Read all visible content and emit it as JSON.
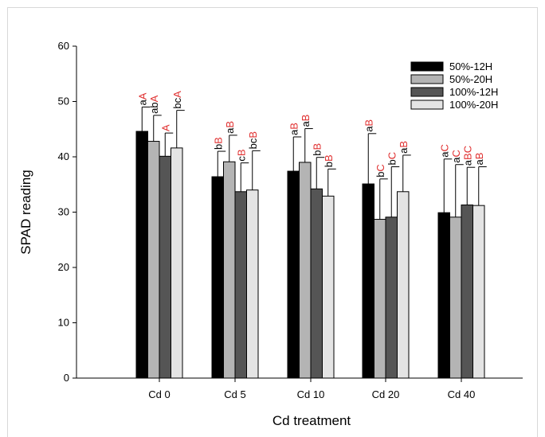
{
  "chart_data": {
    "type": "bar",
    "xlabel": "Cd treatment",
    "ylabel": "SPAD reading",
    "ylim": [
      0,
      60
    ],
    "yticks": [
      0,
      10,
      20,
      30,
      40,
      50,
      60
    ],
    "categories": [
      "Cd 0",
      "Cd 5",
      "Cd 10",
      "Cd 20",
      "Cd 40"
    ],
    "legend_position": "top-right",
    "series": [
      {
        "name": "50%-12H",
        "color": "#000000",
        "values": [
          44.6,
          36.4,
          37.4,
          35.1,
          29.9
        ],
        "errors": [
          4.4,
          4.6,
          6.2,
          9.1,
          9.7
        ],
        "letters_black": [
          "a",
          "b",
          "a",
          "a",
          "a"
        ],
        "letters_red": [
          "A",
          "B",
          "B",
          "B",
          "C"
        ]
      },
      {
        "name": "50%-20H",
        "color": "#b4b4b4",
        "values": [
          42.8,
          39.1,
          39.0,
          28.7,
          29.1
        ],
        "errors": [
          4.7,
          4.8,
          6.1,
          7.3,
          9.5
        ],
        "letters_black": [
          "ab",
          "a",
          "a",
          "b",
          "a"
        ],
        "letters_red": [
          "A",
          "B",
          "B",
          "C",
          "C"
        ]
      },
      {
        "name": "100%-12H",
        "color": "#555555",
        "values": [
          40.1,
          33.7,
          34.2,
          29.1,
          31.3
        ],
        "errors": [
          4.2,
          5.2,
          5.7,
          9.1,
          6.8
        ],
        "letters_black": [
          "",
          "c",
          "b",
          "b",
          "a"
        ],
        "letters_red": [
          "A",
          "B",
          "B",
          "C",
          "BC"
        ]
      },
      {
        "name": "100%-20H",
        "color": "#e4e4e4",
        "values": [
          41.6,
          34.0,
          32.9,
          33.7,
          31.2
        ],
        "errors": [
          6.8,
          7.1,
          4.9,
          6.6,
          7.0
        ],
        "letters_black": [
          "bc",
          "bc",
          "b",
          "a",
          "a"
        ],
        "letters_red": [
          "A",
          "B",
          "B",
          "B",
          "B"
        ]
      }
    ],
    "grid": false
  }
}
